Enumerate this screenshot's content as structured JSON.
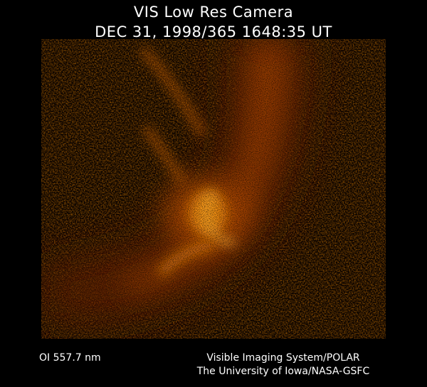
{
  "header": {
    "title": "VIS Low Res Camera",
    "timestamp": "DEC 31, 1998/365 1648:35 UT"
  },
  "footer": {
    "filter": "OI 557.7 nm",
    "credit": [
      "Visible Imaging System/POLAR",
      "The University of Iowa/NASA-GSFC"
    ]
  }
}
